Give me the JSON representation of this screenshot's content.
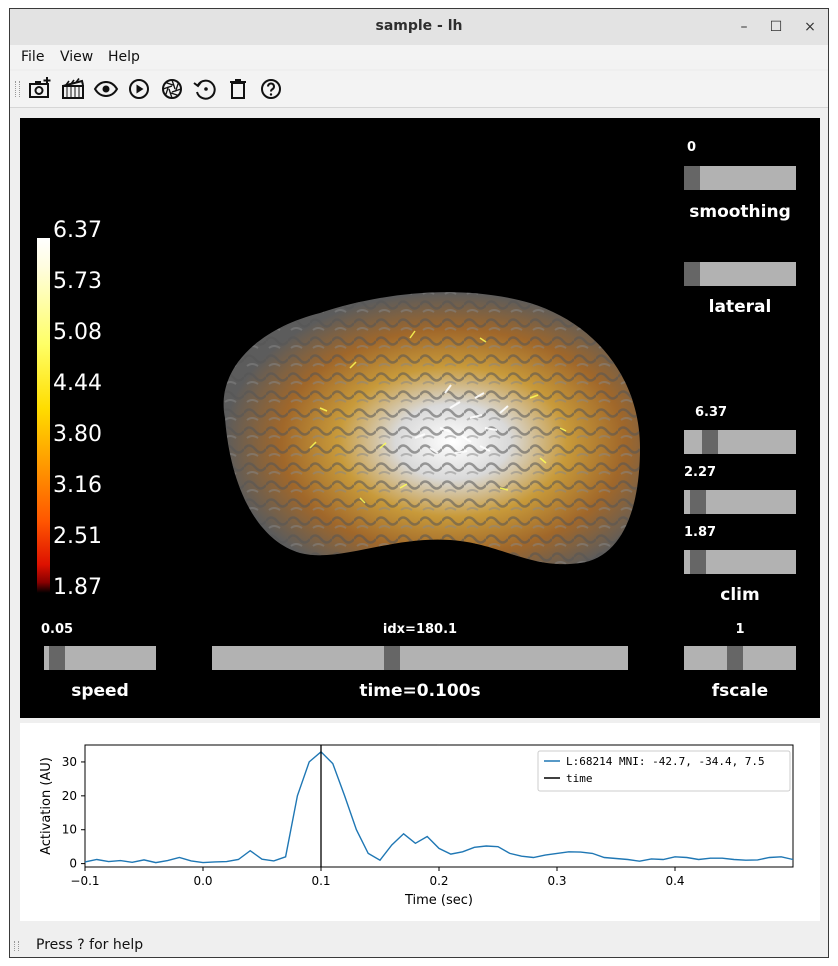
{
  "window": {
    "title": "sample - lh",
    "min_icon": "minimize-icon",
    "max_icon": "maximize-icon",
    "close_icon": "close-icon",
    "min_glyph": "–",
    "max_glyph": "☐",
    "close_glyph": "×"
  },
  "menu": {
    "file": "File",
    "view": "View",
    "help": "Help"
  },
  "toolbar": [
    "screenshot-icon",
    "movie-icon",
    "visibility-icon",
    "play-icon",
    "reset-icon",
    "restore-icon",
    "clear-icon",
    "help-icon"
  ],
  "colorbar": {
    "ticks": [
      "6.37",
      "5.73",
      "5.08",
      "4.44",
      "3.80",
      "3.16",
      "2.51",
      "1.87"
    ]
  },
  "sliders": {
    "smoothing": {
      "label": "smoothing",
      "value": "0",
      "position": 0.0
    },
    "lateral": {
      "label": "lateral",
      "value": "",
      "position": 0.0
    },
    "clim_max": {
      "value": "6.37",
      "position": 0.19
    },
    "clim_mid": {
      "value": "2.27",
      "position": 0.06
    },
    "clim_min": {
      "value": "1.87",
      "position": 0.06
    },
    "clim_label": "clim",
    "speed": {
      "label": "speed",
      "value": "0.05",
      "position": 0.05
    },
    "time": {
      "label": "time=0.100s",
      "value": "idx=180.1",
      "position": 0.43
    },
    "fscale": {
      "label": "fscale",
      "value": "1",
      "position": 0.45
    }
  },
  "plot": {
    "legend": {
      "series": "L:68214  MNI: -42.7, -34.4,   7.5",
      "time": "time"
    },
    "xlabel": "Time (sec)",
    "ylabel": "Activation (AU)"
  },
  "chart_data": {
    "type": "line",
    "xlabel": "Time (sec)",
    "ylabel": "Activation (AU)",
    "xlim": [
      -0.1,
      0.5
    ],
    "ylim": [
      -1,
      35
    ],
    "xticks": [
      "−0.1",
      "0.0",
      "0.1",
      "0.2",
      "0.3",
      "0.4"
    ],
    "xtick_values": [
      -0.1,
      0.0,
      0.1,
      0.2,
      0.3,
      0.4
    ],
    "yticks": [
      "0",
      "10",
      "20",
      "30"
    ],
    "ytick_values": [
      0,
      10,
      20,
      30
    ],
    "series": [
      {
        "name": "L:68214  MNI: -42.7, -34.4,   7.5",
        "color": "#1f77b4",
        "x": [
          -0.1,
          -0.09,
          -0.08,
          -0.07,
          -0.06,
          -0.05,
          -0.04,
          -0.03,
          -0.02,
          -0.01,
          0.0,
          0.01,
          0.02,
          0.03,
          0.04,
          0.05,
          0.06,
          0.07,
          0.08,
          0.09,
          0.1,
          0.11,
          0.12,
          0.13,
          0.14,
          0.15,
          0.16,
          0.17,
          0.18,
          0.19,
          0.2,
          0.21,
          0.22,
          0.23,
          0.24,
          0.25,
          0.26,
          0.27,
          0.28,
          0.29,
          0.3,
          0.31,
          0.32,
          0.33,
          0.34,
          0.35,
          0.36,
          0.37,
          0.38,
          0.39,
          0.4,
          0.41,
          0.42,
          0.43,
          0.44,
          0.45,
          0.46,
          0.47,
          0.48,
          0.49,
          0.5
        ],
        "y": [
          0.5,
          1.2,
          0.6,
          0.9,
          0.4,
          1.1,
          0.3,
          0.9,
          1.8,
          0.8,
          0.3,
          0.5,
          0.6,
          1.2,
          3.8,
          1.3,
          0.8,
          2.0,
          20.0,
          30.0,
          33.0,
          29.5,
          20.0,
          10.0,
          3.0,
          1.0,
          5.5,
          8.8,
          6.0,
          8.0,
          4.5,
          2.8,
          3.5,
          4.8,
          5.2,
          5.0,
          3.0,
          2.2,
          1.8,
          2.5,
          3.0,
          3.5,
          3.4,
          3.0,
          1.8,
          1.5,
          1.2,
          0.7,
          1.4,
          1.2,
          2.0,
          1.8,
          1.2,
          1.6,
          1.6,
          1.2,
          1.0,
          1.1,
          1.8,
          2.0,
          1.2
        ]
      }
    ],
    "vline": {
      "name": "time",
      "x": 0.1,
      "color": "#000000"
    },
    "legend_position": "top-right"
  },
  "status": {
    "text": "Press ? for help"
  }
}
